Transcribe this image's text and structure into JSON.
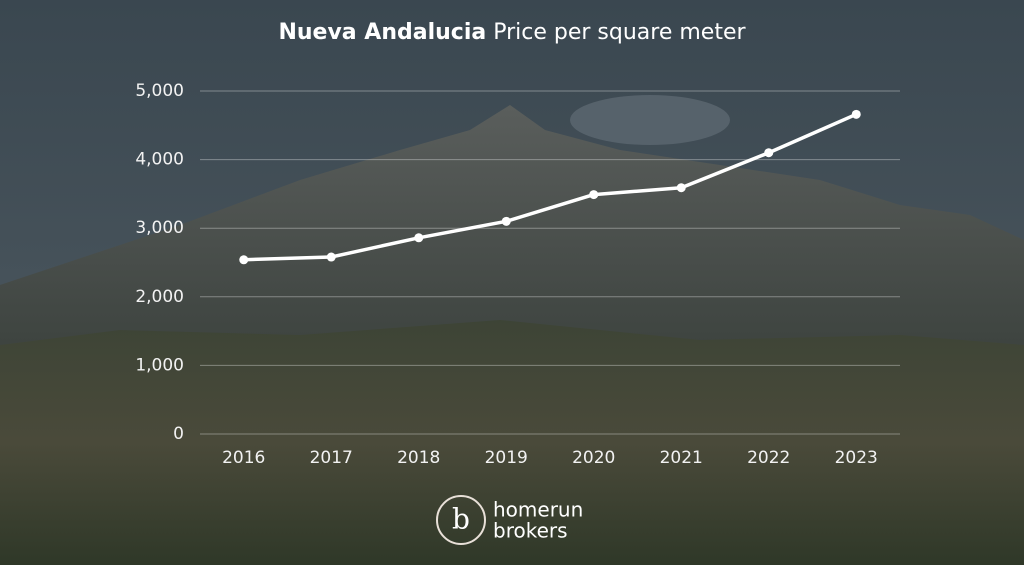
{
  "chart_data": {
    "type": "line",
    "title_emphasis": "Nueva Andalucia",
    "title": "Price per square meter",
    "categories": [
      "2016",
      "2017",
      "2018",
      "2019",
      "2020",
      "2021",
      "2022",
      "2023"
    ],
    "values": [
      2540,
      2580,
      2860,
      3100,
      3490,
      3590,
      4100,
      4660
    ],
    "color": "#ffffff",
    "ylim": [
      0,
      5000
    ],
    "yticks": [
      0,
      {
        "value": 1000,
        "label": "1,000"
      },
      {
        "value": 2000,
        "label": "2,000"
      },
      {
        "value": 3000,
        "label": "3,000"
      },
      {
        "value": 4000,
        "label": "4,000"
      },
      {
        "value": 5000,
        "label": "5,000"
      }
    ],
    "grid": true
  },
  "logo": {
    "line1": "homerun",
    "line2": "brokers"
  }
}
